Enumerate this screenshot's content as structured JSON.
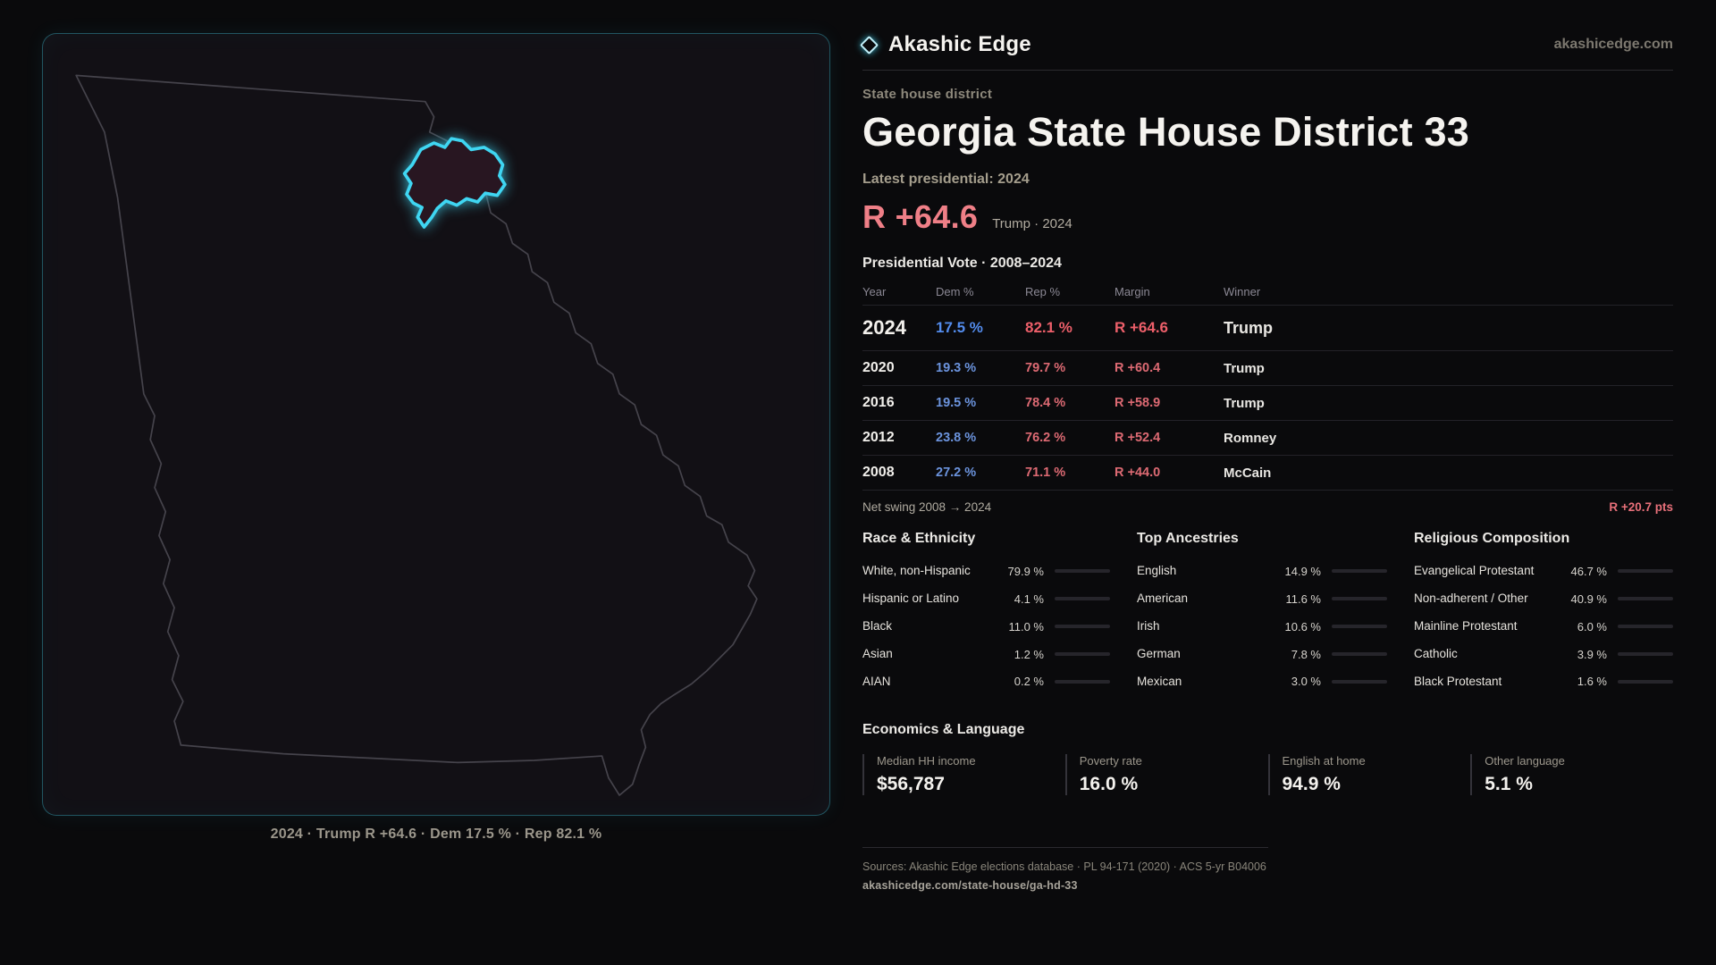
{
  "header": {
    "brand": "Akashic Edge",
    "site": "akashicedge.com"
  },
  "hero": {
    "kicker": "State house district",
    "title": "Georgia State House District 33",
    "latest_label": "Latest presidential: 2024",
    "margin_value": "R +64.6",
    "margin_context": "Trump · 2024"
  },
  "map": {
    "caption": "2024 · Trump R +64.6 · Dem 17.5 % · Rep 82.1 %"
  },
  "colors": {
    "accent": "#3fd6f2",
    "republican": "#e8636d",
    "democrat": "#5a8fe8"
  },
  "table": {
    "title": "Presidential Vote · 2008–2024",
    "columns": [
      "Year",
      "Dem %",
      "Rep %",
      "Margin",
      "Winner"
    ],
    "rows": [
      {
        "year": "2024",
        "dem": "17.5 %",
        "rep": "82.1 %",
        "margin": "R +64.6",
        "winner": "Trump"
      },
      {
        "year": "2020",
        "dem": "19.3 %",
        "rep": "79.7 %",
        "margin": "R +60.4",
        "winner": "Trump"
      },
      {
        "year": "2016",
        "dem": "19.5 %",
        "rep": "78.4 %",
        "margin": "R +58.9",
        "winner": "Trump"
      },
      {
        "year": "2012",
        "dem": "23.8 %",
        "rep": "76.2 %",
        "margin": "R +52.4",
        "winner": "Romney"
      },
      {
        "year": "2008",
        "dem": "27.2 %",
        "rep": "71.1 %",
        "margin": "R +44.0",
        "winner": "McCain"
      }
    ]
  },
  "net_swing": {
    "label": "Net swing 2008 → 2024",
    "value": "R +20.7 pts"
  },
  "demographics": {
    "race": {
      "title": "Race & Ethnicity",
      "rows": [
        {
          "label": "White, non-Hispanic",
          "value": "79.9 %",
          "pct": 79.9,
          "color": "#c9c6da"
        },
        {
          "label": "Hispanic or Latino",
          "value": "4.1 %",
          "pct": 4.1,
          "color": "#e3c05c"
        },
        {
          "label": "Black",
          "value": "11.0 %",
          "pct": 11.0,
          "color": "#8f7be0"
        },
        {
          "label": "Asian",
          "value": "1.2 %",
          "pct": 1.2,
          "color": "#5bbf8a"
        },
        {
          "label": "AIAN",
          "value": "0.2 %",
          "pct": 0.2,
          "color": "#b9b6c2"
        }
      ]
    },
    "ancestry": {
      "title": "Top Ancestries",
      "rows": [
        {
          "label": "English",
          "value": "14.9 %",
          "pct": 14.9,
          "color": "#b4b1bd"
        },
        {
          "label": "American",
          "value": "11.6 %",
          "pct": 11.6,
          "color": "#b4b1bd"
        },
        {
          "label": "Irish",
          "value": "10.6 %",
          "pct": 10.6,
          "color": "#b4b1bd"
        },
        {
          "label": "German",
          "value": "7.8 %",
          "pct": 7.8,
          "color": "#b4b1bd"
        },
        {
          "label": "Mexican",
          "value": "3.0 %",
          "pct": 3.0,
          "color": "#e3c05c"
        }
      ]
    },
    "religion": {
      "title": "Religious Composition",
      "rows": [
        {
          "label": "Evangelical Protestant",
          "value": "46.7 %",
          "pct": 46.7,
          "color": "#e0697a"
        },
        {
          "label": "Non-adherent / Other",
          "value": "40.9 %",
          "pct": 40.9,
          "color": "#a7a3b2"
        },
        {
          "label": "Mainline Protestant",
          "value": "6.0 %",
          "pct": 6.0,
          "color": "#5f8fe0"
        },
        {
          "label": "Catholic",
          "value": "3.9 %",
          "pct": 3.9,
          "color": "#e3c05c"
        },
        {
          "label": "Black Protestant",
          "value": "1.6 %",
          "pct": 1.6,
          "color": "#b9b6c2"
        }
      ]
    }
  },
  "economics": {
    "title": "Economics & Language",
    "stats": [
      {
        "label": "Median HH income",
        "value": "$56,787"
      },
      {
        "label": "Poverty rate",
        "value": "16.0 %"
      },
      {
        "label": "English at home",
        "value": "94.9 %"
      },
      {
        "label": "Other language",
        "value": "5.1 %"
      }
    ]
  },
  "footer": {
    "sources": "Sources: Akashic Edge elections database · PL 94-171 (2020) · ACS 5-yr B04006",
    "link": "akashicedge.com/state-house/ga-hd-33"
  }
}
